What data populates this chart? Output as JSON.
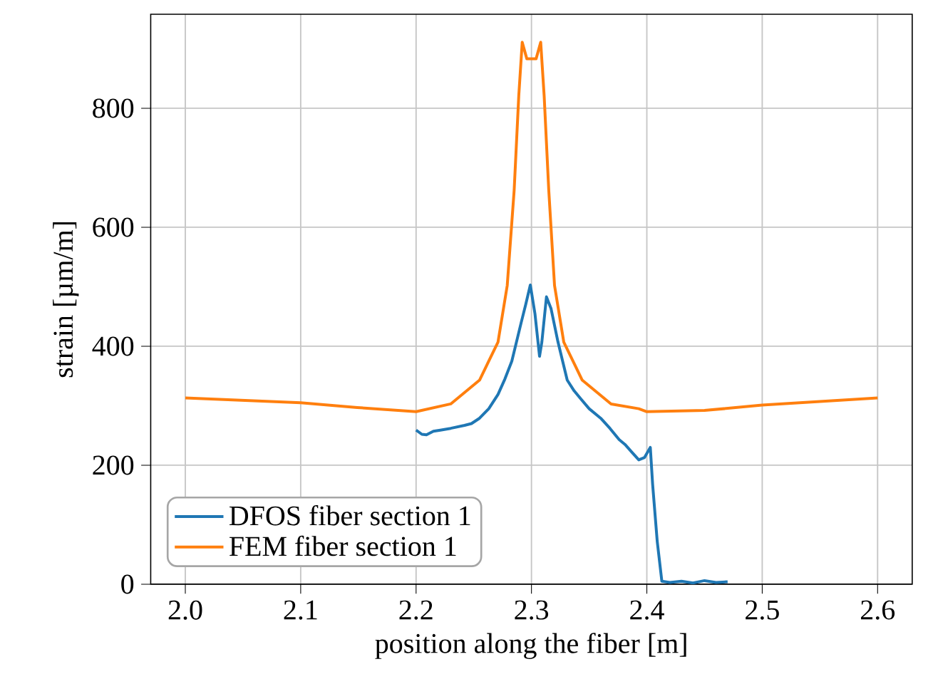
{
  "chart_data": {
    "type": "line",
    "xlabel": "position along the fiber [m]",
    "ylabel": "strain [µm/m]",
    "xlim": [
      1.97,
      2.63
    ],
    "ylim": [
      0,
      958
    ],
    "xticks": [
      {
        "value": 2.0,
        "label": "2.0"
      },
      {
        "value": 2.1,
        "label": "2.1"
      },
      {
        "value": 2.2,
        "label": "2.2"
      },
      {
        "value": 2.3,
        "label": "2.3"
      },
      {
        "value": 2.4,
        "label": "2.4"
      },
      {
        "value": 2.5,
        "label": "2.5"
      },
      {
        "value": 2.6,
        "label": "2.6"
      }
    ],
    "yticks": [
      0,
      200,
      400,
      600,
      800
    ],
    "grid": true,
    "legend": "bottom left",
    "series": [
      {
        "name": "DFOS fiber section 1",
        "color": "#1f77b4",
        "x": [
          2.2,
          2.205,
          2.209,
          2.215,
          2.221,
          2.23,
          2.242,
          2.248,
          2.255,
          2.263,
          2.271,
          2.277,
          2.283,
          2.291,
          2.295,
          2.299,
          2.303,
          2.307,
          2.309,
          2.313,
          2.317,
          2.323,
          2.331,
          2.337,
          2.343,
          2.35,
          2.36,
          2.368,
          2.376,
          2.381,
          2.387,
          2.393,
          2.398,
          2.403,
          2.405,
          2.409,
          2.413,
          2.42,
          2.43,
          2.44,
          2.45,
          2.46,
          2.47
        ],
        "values": [
          259,
          252,
          251,
          257,
          259,
          262,
          267,
          270,
          279,
          295,
          319,
          345,
          375,
          439,
          470,
          503,
          455,
          383,
          407,
          483,
          463,
          407,
          343,
          325,
          311,
          295,
          279,
          262,
          243,
          235,
          222,
          209,
          213,
          230,
          168,
          72,
          5,
          3,
          5,
          2,
          6,
          3,
          4
        ]
      },
      {
        "name": "FEM fiber section 1",
        "color": "#ff7f0e",
        "x": [
          2.0,
          2.1,
          2.149,
          2.2,
          2.23,
          2.255,
          2.271,
          2.279,
          2.285,
          2.289,
          2.292,
          2.296,
          2.3,
          2.304,
          2.308,
          2.311,
          2.315,
          2.32,
          2.328,
          2.344,
          2.369,
          2.393,
          2.4,
          2.45,
          2.5,
          2.55,
          2.6
        ],
        "values": [
          313,
          305,
          297,
          290,
          303,
          343,
          407,
          502,
          662,
          821,
          911,
          883,
          883,
          883,
          911,
          821,
          662,
          502,
          407,
          343,
          303,
          295,
          290,
          292,
          301,
          307,
          313
        ]
      }
    ]
  }
}
